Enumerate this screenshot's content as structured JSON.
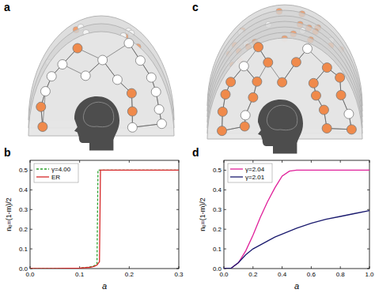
{
  "figure": {
    "panel_labels": [
      "a",
      "b",
      "c",
      "d"
    ]
  },
  "chart_data": [
    {
      "type": "line",
      "x_label": "a",
      "y_label": "nₑ=(1-m)/2",
      "x": [
        0,
        0.05,
        0.1,
        0.12,
        0.13,
        0.135,
        0.137,
        0.14,
        0.142,
        0.144,
        0.2,
        0.3
      ],
      "series": [
        {
          "name": "γ=4.00",
          "color": "#2ca02c",
          "line_style": "dashed",
          "values": [
            0,
            0,
            0.002,
            0.008,
            0.015,
            0.025,
            0.5,
            0.5,
            0.5,
            0.5,
            0.5,
            0.5
          ]
        },
        {
          "name": "ER",
          "color": "#d62728",
          "line_style": "solid",
          "values": [
            0,
            0,
            0.002,
            0.006,
            0.012,
            0.018,
            0.025,
            0.035,
            0.5,
            0.5,
            0.5,
            0.5
          ]
        }
      ],
      "xlim": [
        0,
        0.3
      ],
      "xticks": [
        {
          "value": 0,
          "label": "0.0"
        },
        0.1,
        0.2,
        0.3
      ],
      "ylim": [
        0,
        0.55
      ],
      "yticks": [
        {
          "value": 0,
          "label": "0.0"
        },
        0.1,
        0.2,
        0.3,
        0.4,
        0.5
      ],
      "legend": "upper left",
      "grid": false
    },
    {
      "type": "line",
      "x_label": "a",
      "y_label": "nₑ=(1-m)/2",
      "x": [
        0,
        0.05,
        0.1,
        0.15,
        0.2,
        0.25,
        0.3,
        0.35,
        0.4,
        0.45,
        0.5,
        0.6,
        0.7,
        0.8,
        0.9,
        1.0
      ],
      "series": [
        {
          "name": "γ=2.04",
          "color": "#e0209a",
          "line_style": "solid",
          "values": [
            0,
            0.002,
            0.03,
            0.09,
            0.17,
            0.26,
            0.34,
            0.41,
            0.47,
            0.495,
            0.5,
            0.5,
            0.5,
            0.5,
            0.5,
            0.5
          ]
        },
        {
          "name": "γ=2.01",
          "color": "#1a1a6e",
          "line_style": "solid",
          "values": [
            0,
            0.002,
            0.03,
            0.07,
            0.1,
            0.12,
            0.14,
            0.16,
            0.175,
            0.19,
            0.205,
            0.23,
            0.25,
            0.265,
            0.28,
            0.295
          ]
        }
      ],
      "xlim": [
        0,
        1
      ],
      "xticks": [
        {
          "value": 0,
          "label": "0.0"
        },
        0.2,
        0.4,
        0.6,
        0.8,
        {
          "value": 1,
          "label": "1.0"
        }
      ],
      "ylim": [
        0,
        0.55
      ],
      "yticks": [
        {
          "value": 0,
          "label": "0.0"
        },
        0.1,
        0.2,
        0.3,
        0.4,
        0.5
      ],
      "legend": "upper left",
      "grid": false
    }
  ]
}
